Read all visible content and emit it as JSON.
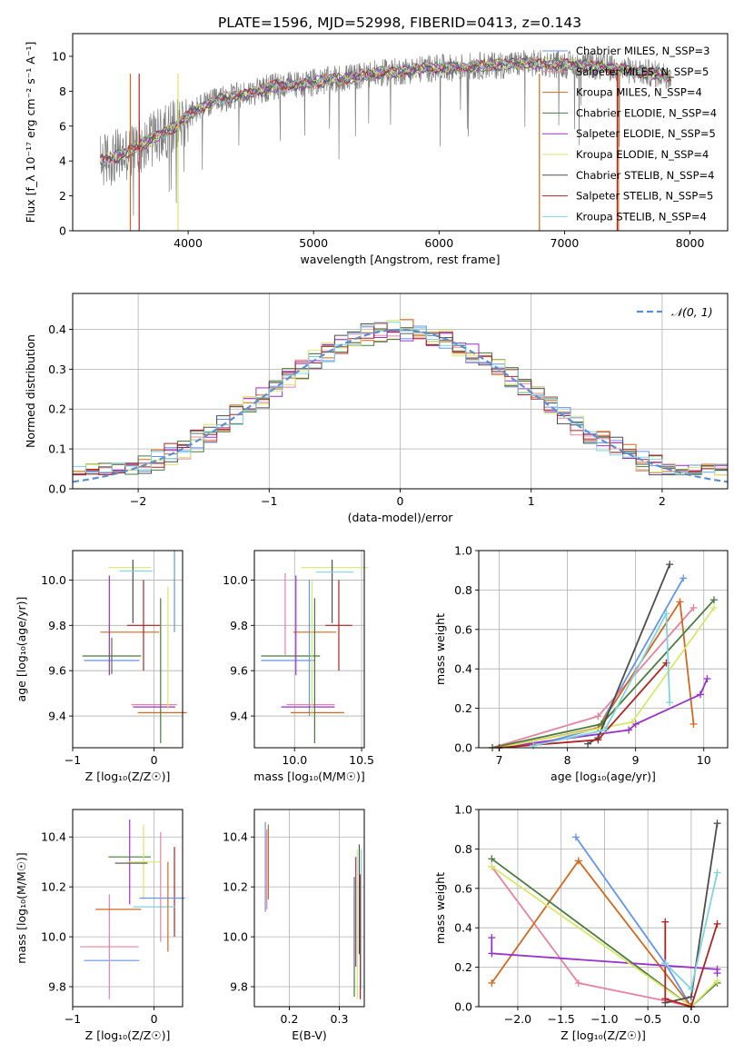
{
  "page_title": "PLATE=1596, MJD=52998, FIBERID=0413, z=0.143",
  "colors": {
    "chabrier_miles": "#6495ed",
    "salpeter_miles": "#e8839e",
    "kroupa_miles": "#d2691e",
    "chabrier_elodie": "#4a7c3f",
    "salpeter_elodie": "#9932cc",
    "kroupa_elodie": "#d7e86a",
    "chabrier_stelib": "#4d4d4d",
    "salpeter_stelib": "#b22222",
    "kroupa_stelib": "#7fd4e0",
    "data": "#808080",
    "gauss": "#5b8fd4"
  },
  "chart_data": [
    {
      "id": "spectrum",
      "type": "line",
      "title": "PLATE=1596, MJD=52998, FIBERID=0413, z=0.143",
      "xlabel": "wavelength [Angstrom, rest frame]",
      "ylabel": "Flux [f_λ 10⁻¹⁷ erg cm⁻² s⁻¹ A⁻¹]",
      "xlim": [
        3080,
        8300
      ],
      "ylim": [
        0,
        11.3
      ],
      "xticks": [
        "4000",
        "5000",
        "6000",
        "7000",
        "8000"
      ],
      "yticks": [
        "0",
        "2",
        "4",
        "6",
        "8",
        "10"
      ],
      "grid": false,
      "legend_position": "top-right",
      "series_continuum": {
        "x": [
          3300,
          3500,
          3700,
          3900,
          4100,
          4300,
          4500,
          4700,
          4900,
          5100,
          5300,
          5500,
          5700,
          5900,
          6100,
          6300,
          6500,
          6700,
          6900,
          7100,
          7300,
          7500,
          7700,
          7850
        ],
        "y": [
          4.0,
          4.4,
          5.2,
          6.0,
          7.1,
          7.6,
          7.9,
          8.3,
          8.4,
          8.6,
          8.8,
          9.0,
          9.15,
          9.3,
          9.35,
          9.45,
          9.5,
          9.6,
          9.55,
          9.5,
          9.4,
          9.2,
          9.0,
          8.9
        ]
      },
      "series": [
        {
          "name": "Chabrier MILES, N_SSP=3"
        },
        {
          "name": "Salpeter MILES, N_SSP=5"
        },
        {
          "name": "Kroupa MILES, N_SSP=4"
        },
        {
          "name": "Chabrier ELODIE, N_SSP=4"
        },
        {
          "name": "Salpeter ELODIE, N_SSP=5"
        },
        {
          "name": "Kroupa ELODIE, N_SSP=4"
        },
        {
          "name": "Chabrier STELIB, N_SSP=4"
        },
        {
          "name": "Salpeter STELIB, N_SSP=5"
        },
        {
          "name": "Kroupa STELIB, N_SSP=4"
        }
      ]
    },
    {
      "id": "residuals",
      "type": "line",
      "xlabel": "(data-model)/error",
      "ylabel": "Normed distribution",
      "xlim": [
        -2.5,
        2.5
      ],
      "ylim": [
        0,
        0.49
      ],
      "xticks": [
        "−2",
        "−1",
        "0",
        "1",
        "2"
      ],
      "yticks": [
        "0.0",
        "0.1",
        "0.2",
        "0.3",
        "0.4"
      ],
      "grid": true,
      "legend_position": "top-right",
      "gauss_label": "𝒩(0, 1)",
      "bin_width": 0.1
    },
    {
      "id": "age_vs_Z",
      "type": "scatter",
      "xlabel": "Z [log₁₀(Z/Z☉)]",
      "ylabel": "age  [log₁₀(age/yr)]",
      "xlim": [
        -1.0,
        0.35
      ],
      "ylim": [
        9.26,
        10.13
      ],
      "xticks": [
        "−1",
        "0"
      ],
      "yticks": [
        "9.4",
        "9.6",
        "9.8",
        "10.0"
      ],
      "points": [
        {
          "x": -0.52,
          "y": 9.645,
          "xerr": 0.34,
          "yerr": 0.0
        },
        {
          "x": -0.55,
          "y": 10.03,
          "xerr": 0.0,
          "yerr": 0.0
        },
        {
          "x": -0.3,
          "y": 9.77,
          "xerr": 0.36,
          "yerr": 0.0
        },
        {
          "x": -0.52,
          "y": 9.665,
          "xerr": 0.36,
          "yerr": 0.08
        },
        {
          "x": -0.55,
          "y": 9.8,
          "xerr": 0.0,
          "yerr": 0.22
        },
        {
          "x": -0.3,
          "y": 10.055,
          "xerr": 0.26,
          "yerr": 0.0
        },
        {
          "x": -0.26,
          "y": 9.95,
          "xerr": 0.0,
          "yerr": 0.14
        },
        {
          "x": -0.13,
          "y": 9.8,
          "xerr": 0.2,
          "yerr": 0.2
        },
        {
          "x": -0.22,
          "y": 10.04,
          "xerr": 0.2,
          "yerr": 0.0
        },
        {
          "x": 0.25,
          "y": 9.95,
          "xerr": 0.0,
          "yerr": 0.18
        },
        {
          "x": 0.0,
          "y": 9.45,
          "xerr": 0.28,
          "yerr": 0.0
        },
        {
          "x": 0.1,
          "y": 9.415,
          "xerr": 0.3,
          "yerr": 0.0
        },
        {
          "x": 0.08,
          "y": 9.6,
          "xerr": 0.0,
          "yerr": 0.32
        },
        {
          "x": 0.0,
          "y": 9.44,
          "xerr": 0.26,
          "yerr": 0.0
        },
        {
          "x": 0.17,
          "y": 9.7,
          "xerr": 0.0,
          "yerr": 0.27
        }
      ]
    },
    {
      "id": "age_vs_mass",
      "type": "scatter",
      "xlabel": "mass [log₁₀(M/M☉)]",
      "xlim": [
        9.7,
        10.52
      ],
      "ylim": [
        9.26,
        10.13
      ],
      "xticks": [
        "10.0",
        "10.5"
      ],
      "yticks": [
        "9.4",
        "9.6",
        "9.8",
        "10.0"
      ],
      "points": [
        {
          "x": 9.95,
          "y": 9.645,
          "xerr": 0.2,
          "yerr": 0.0
        },
        {
          "x": 9.93,
          "y": 9.85,
          "xerr": 0.0,
          "yerr": 0.18
        },
        {
          "x": 10.15,
          "y": 9.77,
          "xerr": 0.16,
          "yerr": 0.0
        },
        {
          "x": 9.97,
          "y": 9.665,
          "xerr": 0.22,
          "yerr": 0.0
        },
        {
          "x": 10.01,
          "y": 9.8,
          "xerr": 0.0,
          "yerr": 0.22
        },
        {
          "x": 10.3,
          "y": 10.055,
          "xerr": 0.25,
          "yerr": 0.0
        },
        {
          "x": 10.28,
          "y": 9.95,
          "xerr": 0.0,
          "yerr": 0.14
        },
        {
          "x": 10.33,
          "y": 9.8,
          "xerr": 0.1,
          "yerr": 0.2
        },
        {
          "x": 10.3,
          "y": 10.035,
          "xerr": 0.14,
          "yerr": 0.0
        },
        {
          "x": 10.11,
          "y": 9.7,
          "xerr": 0.0,
          "yerr": 0.3
        },
        {
          "x": 10.12,
          "y": 9.45,
          "xerr": 0.18,
          "yerr": 0.0
        },
        {
          "x": 10.17,
          "y": 9.415,
          "xerr": 0.2,
          "yerr": 0.0
        },
        {
          "x": 10.15,
          "y": 9.6,
          "xerr": 0.0,
          "yerr": 0.32
        },
        {
          "x": 10.1,
          "y": 9.44,
          "xerr": 0.2,
          "yerr": 0.0
        },
        {
          "x": 10.13,
          "y": 9.7,
          "xerr": 0.0,
          "yerr": 0.3
        }
      ]
    },
    {
      "id": "weight_vs_age",
      "type": "line",
      "xlabel": "age  [log₁₀(age/yr)]",
      "ylabel": "mass weight",
      "xlim": [
        6.7,
        10.35
      ],
      "ylim": [
        0,
        1.0
      ],
      "xticks": [
        "7",
        "8",
        "9",
        "10"
      ],
      "yticks": [
        "0.0",
        "0.2",
        "0.4",
        "0.6",
        "0.8",
        "1.0"
      ],
      "grid": true,
      "series": [
        {
          "x": [
            7.5,
            8.45,
            9.7
          ],
          "y": [
            0.01,
            0.1,
            0.86
          ]
        },
        {
          "x": [
            6.9,
            8.45,
            9.85
          ],
          "y": [
            0.0,
            0.16,
            0.71
          ]
        },
        {
          "x": [
            7.0,
            8.45,
            9.65,
            9.85
          ],
          "y": [
            0.0,
            0.1,
            0.74,
            0.12
          ]
        },
        {
          "x": [
            6.9,
            8.5,
            10.15
          ],
          "y": [
            0.0,
            0.12,
            0.75
          ]
        },
        {
          "x": [
            7.0,
            8.9,
            9.0,
            9.95,
            10.05
          ],
          "y": [
            0.0,
            0.09,
            0.12,
            0.27,
            0.35
          ]
        },
        {
          "x": [
            7.0,
            8.95,
            10.15
          ],
          "y": [
            0.0,
            0.13,
            0.71
          ]
        },
        {
          "x": [
            8.3,
            8.45,
            9.5
          ],
          "y": [
            0.02,
            0.05,
            0.93
          ]
        },
        {
          "x": [
            7.0,
            8.45,
            9.45
          ],
          "y": [
            0.0,
            0.04,
            0.43
          ]
        },
        {
          "x": [
            7.5,
            8.55,
            9.45,
            9.5
          ],
          "y": [
            0.01,
            0.09,
            0.68,
            0.23
          ]
        }
      ]
    },
    {
      "id": "mass_vs_Z",
      "type": "scatter",
      "xlabel": "Z [log₁₀(Z/Z☉)]",
      "ylabel": "mass [log₁₀(M/M☉)]",
      "xlim": [
        -1.0,
        0.35
      ],
      "ylim": [
        9.72,
        10.51
      ],
      "xticks": [
        "−1",
        "0"
      ],
      "yticks": [
        "9.8",
        "10.0",
        "10.2",
        "10.4"
      ],
      "points": [
        {
          "x": -0.52,
          "y": 9.905,
          "xerr": 0.34,
          "yerr": 0.0
        },
        {
          "x": -0.55,
          "y": 9.96,
          "xerr": 0.36,
          "yerr": 0.21
        },
        {
          "x": -0.44,
          "y": 10.11,
          "xerr": 0.28,
          "yerr": 0.0
        },
        {
          "x": -0.3,
          "y": 10.32,
          "xerr": 0.26,
          "yerr": 0.0
        },
        {
          "x": -0.3,
          "y": 10.3,
          "xerr": 0.0,
          "yerr": 0.17
        },
        {
          "x": -0.13,
          "y": 10.3,
          "xerr": 0.2,
          "yerr": 0.15
        },
        {
          "x": -0.28,
          "y": 10.295,
          "xerr": 0.2,
          "yerr": 0.0
        },
        {
          "x": 0.25,
          "y": 10.18,
          "xerr": 0.0,
          "yerr": 0.18
        },
        {
          "x": 0.0,
          "y": 10.12,
          "xerr": 0.26,
          "yerr": 0.0
        },
        {
          "x": 0.1,
          "y": 10.155,
          "xerr": 0.28,
          "yerr": 0.0
        },
        {
          "x": 0.08,
          "y": 10.2,
          "xerr": 0.0,
          "yerr": 0.22
        },
        {
          "x": 0.17,
          "y": 10.12,
          "xerr": 0.0,
          "yerr": 0.18
        }
      ]
    },
    {
      "id": "mass_vs_ebv",
      "type": "scatter",
      "xlabel": "E(B-V)",
      "xlim": [
        0.13,
        0.35
      ],
      "ylim": [
        9.72,
        10.51
      ],
      "xticks": [
        "0.2",
        "0.3"
      ],
      "yticks": [
        "9.8",
        "10.0",
        "10.2",
        "10.4"
      ],
      "points": [
        {
          "x": 0.152,
          "y": 10.28,
          "yerr": 0.18
        },
        {
          "x": 0.155,
          "y": 10.27,
          "yerr": 0.16
        },
        {
          "x": 0.158,
          "y": 10.3,
          "yerr": 0.15
        },
        {
          "x": 0.33,
          "y": 10.0,
          "yerr": 0.24
        },
        {
          "x": 0.333,
          "y": 10.1,
          "yerr": 0.22
        },
        {
          "x": 0.336,
          "y": 10.05,
          "yerr": 0.3
        },
        {
          "x": 0.34,
          "y": 10.15,
          "yerr": 0.22
        },
        {
          "x": 0.342,
          "y": 10.0,
          "yerr": 0.25
        },
        {
          "x": 0.344,
          "y": 10.07,
          "yerr": 0.28
        }
      ]
    },
    {
      "id": "weight_vs_Z",
      "type": "line",
      "xlabel": "Z [log₁₀(Z/Z☉)]",
      "ylabel": "mass weight",
      "xlim": [
        -2.45,
        0.42
      ],
      "ylim": [
        0,
        1.0
      ],
      "xticks": [
        "−2.0",
        "−1.5",
        "−1.0",
        "−0.5",
        "0.0"
      ],
      "yticks": [
        "0.0",
        "0.2",
        "0.4",
        "0.6",
        "0.8",
        "1.0"
      ],
      "grid": true,
      "series": [
        {
          "x": [
            -1.33,
            -0.3,
            0.0
          ],
          "y": [
            0.86,
            0.22,
            0.0
          ]
        },
        {
          "x": [
            -2.3,
            -1.3,
            -0.3,
            0.0
          ],
          "y": [
            0.71,
            0.12,
            0.03,
            0.0
          ]
        },
        {
          "x": [
            -2.3,
            -1.3,
            0.0
          ],
          "y": [
            0.12,
            0.74,
            0.0
          ]
        },
        {
          "x": [
            -2.3,
            0.0,
            0.3
          ],
          "y": [
            0.75,
            0.0,
            0.12
          ]
        },
        {
          "x": [
            -2.3,
            -2.3,
            0.3,
            0.3
          ],
          "y": [
            0.35,
            0.27,
            0.19,
            0.17
          ]
        },
        {
          "x": [
            -2.3,
            0.0,
            0.3
          ],
          "y": [
            0.71,
            0.0,
            0.13
          ]
        },
        {
          "x": [
            -0.3,
            0.0,
            0.3
          ],
          "y": [
            0.02,
            0.05,
            0.93
          ]
        },
        {
          "x": [
            -0.3,
            -0.3,
            0.0,
            0.3
          ],
          "y": [
            0.43,
            0.04,
            0.0,
            0.42
          ]
        },
        {
          "x": [
            -0.3,
            0.0,
            0.3
          ],
          "y": [
            0.22,
            0.09,
            0.68
          ]
        }
      ]
    }
  ]
}
